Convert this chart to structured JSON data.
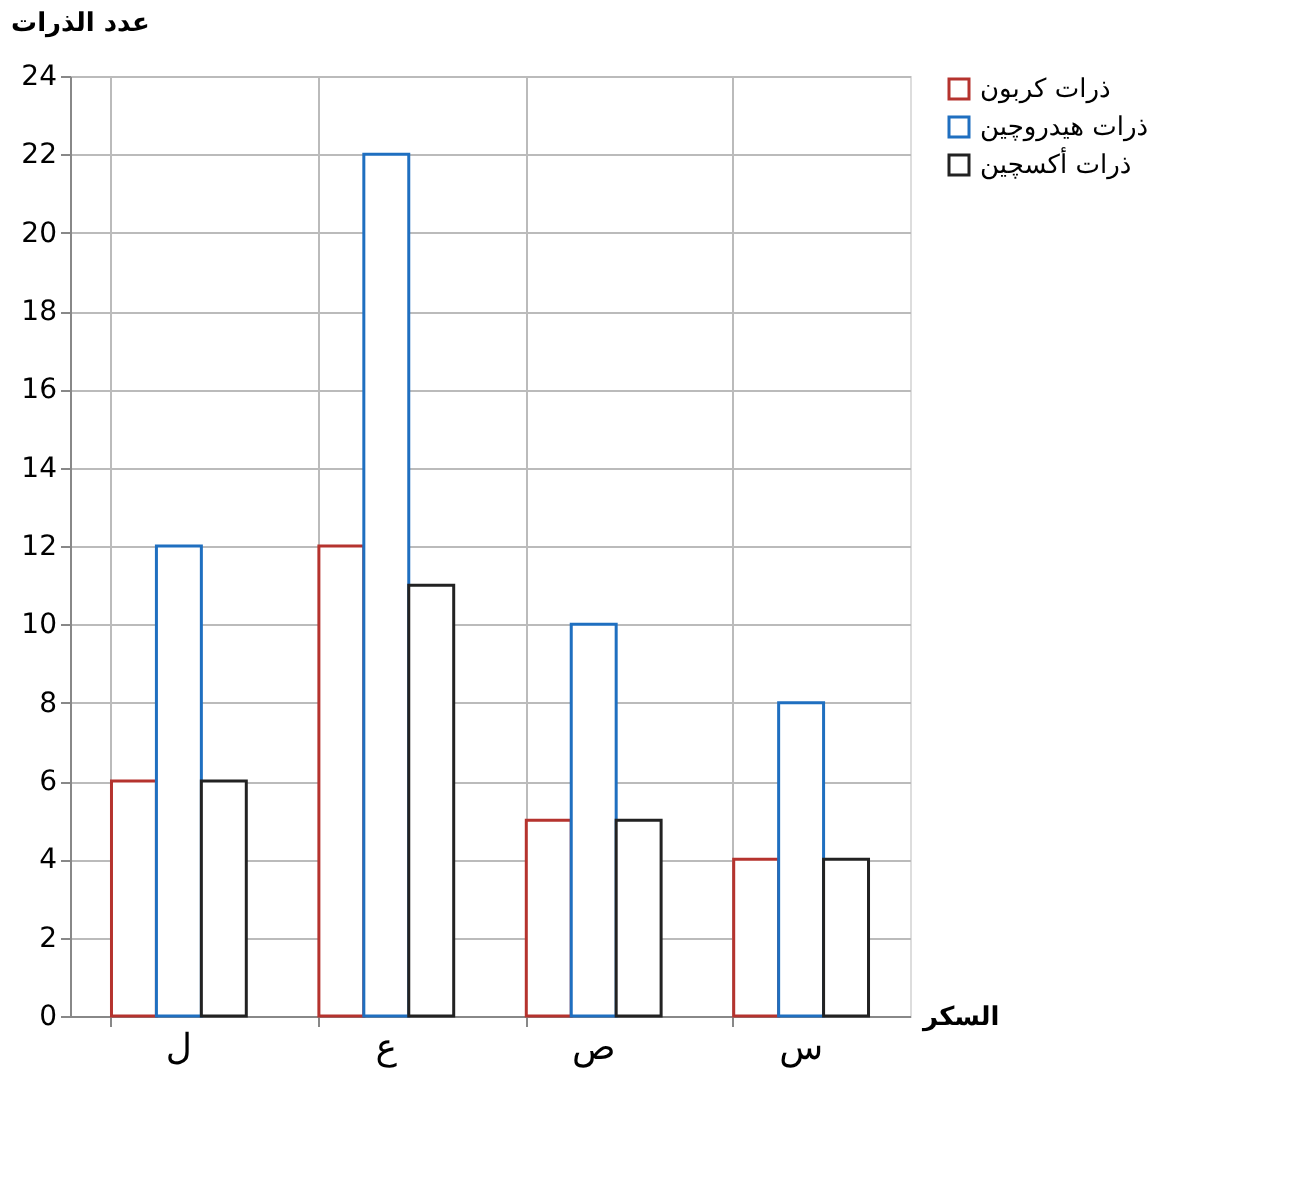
{
  "chart_data": {
    "type": "bar",
    "xlabel": "السكر",
    "ylabel": "عدد الذرات",
    "categories": [
      "ل",
      "ع",
      "ص",
      "س"
    ],
    "series": [
      {
        "name": "ذرات كربون",
        "color": "#b5332e",
        "values": [
          6,
          12,
          5,
          4
        ]
      },
      {
        "name": "ذرات هيدروچين",
        "color": "#1f6fc0",
        "values": [
          12,
          22,
          10,
          8
        ]
      },
      {
        "name": "ذرات أكسچين",
        "color": "#222222",
        "values": [
          6,
          11,
          5,
          4
        ]
      }
    ],
    "ylim": [
      0,
      24
    ],
    "yticks": [
      0,
      2,
      4,
      6,
      8,
      10,
      12,
      14,
      16,
      18,
      20,
      22,
      24
    ],
    "grid": true,
    "legend": "top right"
  }
}
